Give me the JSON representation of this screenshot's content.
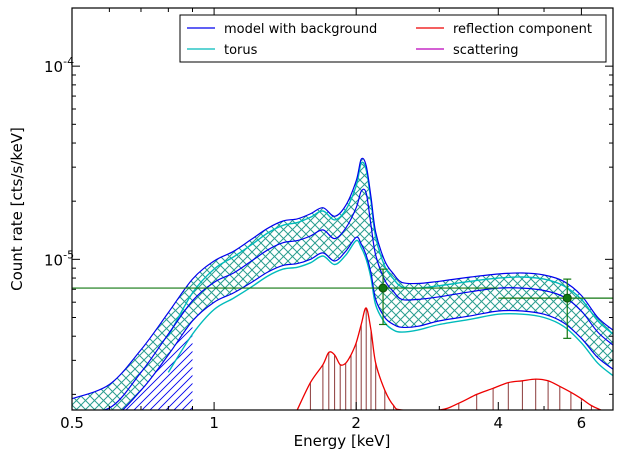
{
  "chart_data": {
    "type": "line",
    "title": "",
    "xlabel": "Energy [keV]",
    "ylabel": "Count rate [cts/s/keV]",
    "xscale": "log",
    "yscale": "log",
    "xlim": [
      0.5,
      7.0
    ],
    "ylim": [
      1.66e-06,
      0.0002
    ],
    "xticks": [
      {
        "value": 0.5,
        "label": "0.5"
      },
      {
        "value": 1,
        "label": "1"
      },
      {
        "value": 2,
        "label": "2"
      },
      {
        "value": 4,
        "label": "4"
      },
      {
        "value": 6,
        "label": "6"
      }
    ],
    "yticks": [
      {
        "value": 1e-05,
        "base": "10",
        "exp": "-5"
      },
      {
        "value": 0.0001,
        "base": "10",
        "exp": "-4"
      }
    ],
    "legend": {
      "placement": "top-right",
      "entries": [
        {
          "label": "model with background",
          "color": "#0000ee"
        },
        {
          "label": "reflection component",
          "color": "#ee0000"
        },
        {
          "label": "torus",
          "color": "#00bbbb"
        },
        {
          "label": "scattering",
          "color": "#bb00bb"
        }
      ]
    },
    "colors": {
      "model": "#0000ee",
      "torus": "#00bbbb",
      "reflection": "#ee0000",
      "reflection_hatch": "#8b3a3a",
      "band_hatch": "#2a9d8f",
      "data": "#117711"
    },
    "series": [
      {
        "key": "model_mid",
        "x": [
          0.5,
          0.6,
          0.7,
          0.8,
          0.9,
          1.0,
          1.1,
          1.2,
          1.3,
          1.4,
          1.5,
          1.6,
          1.7,
          1.8,
          1.9,
          2.0,
          2.05,
          2.1,
          2.15,
          2.2,
          2.3,
          2.4,
          2.5,
          2.7,
          3.0,
          3.5,
          4.0,
          4.5,
          5.0,
          5.5,
          6.0,
          6.5,
          7.0
        ],
        "y": [
          1.66e-06,
          1.7e-06,
          2.6e-06,
          4.1e-06,
          6.1e-06,
          7.6e-06,
          8.5e-06,
          9.8e-06,
          1.12e-05,
          1.22e-05,
          1.25e-05,
          1.32e-05,
          1.42e-05,
          1.28e-05,
          1.45e-05,
          1.85e-05,
          2.25e-05,
          2.2e-05,
          1.5e-05,
          1.05e-05,
          7.8e-06,
          6.8e-06,
          6.2e-06,
          6.2e-06,
          6.4e-06,
          6.8e-06,
          7.1e-06,
          7.1e-06,
          6.9e-06,
          6.4e-06,
          5.4e-06,
          4.2e-06,
          3.6e-06
        ]
      },
      {
        "key": "model_upper",
        "x": [
          0.5,
          0.6,
          0.7,
          0.8,
          0.9,
          1.0,
          1.1,
          1.2,
          1.3,
          1.4,
          1.5,
          1.6,
          1.7,
          1.8,
          1.9,
          2.0,
          2.05,
          2.1,
          2.15,
          2.2,
          2.3,
          2.4,
          2.5,
          2.7,
          3.0,
          3.5,
          4.0,
          4.5,
          5.0,
          5.5,
          6.0,
          6.5,
          7.0
        ],
        "y": [
          1.9e-06,
          2.25e-06,
          3.4e-06,
          5.3e-06,
          7.9e-06,
          9.8e-06,
          1.1e-05,
          1.27e-05,
          1.45e-05,
          1.58e-05,
          1.62e-05,
          1.72e-05,
          1.85e-05,
          1.67e-05,
          1.9e-05,
          2.55e-05,
          3.3e-05,
          3.05e-05,
          2.1e-05,
          1.38e-05,
          9.8e-06,
          8.4e-06,
          7.6e-06,
          7.5e-06,
          7.7e-06,
          8.1e-06,
          8.4e-06,
          8.5e-06,
          8.3e-06,
          7.7e-06,
          6.5e-06,
          5e-06,
          4.3e-06
        ]
      },
      {
        "key": "model_lower",
        "x": [
          0.5,
          0.6,
          0.7,
          0.8,
          0.9,
          1.0,
          1.1,
          1.2,
          1.3,
          1.4,
          1.5,
          1.6,
          1.7,
          1.8,
          1.9,
          2.0,
          2.05,
          2.1,
          2.15,
          2.2,
          2.3,
          2.4,
          2.5,
          2.7,
          3.0,
          3.5,
          4.0,
          4.5,
          5.0,
          5.5,
          6.0,
          6.5,
          7.0
        ],
        "y": [
          1.6e-06,
          1.5e-06,
          2.1e-06,
          3.2e-06,
          4.8e-06,
          6e-06,
          6.7e-06,
          7.6e-06,
          8.6e-06,
          9.3e-06,
          9.5e-06,
          1e-05,
          1.08e-05,
          9.8e-06,
          1.1e-05,
          1.3e-05,
          1.2e-05,
          1.05e-05,
          8.5e-06,
          6.2e-06,
          5e-06,
          4.6e-06,
          4.45e-06,
          4.5e-06,
          4.8e-06,
          5.1e-06,
          5.4e-06,
          5.4e-06,
          5.2e-06,
          4.7e-06,
          3.9e-06,
          3.1e-06,
          2.7e-06
        ]
      },
      {
        "key": "torus_upper",
        "x": [
          0.8,
          0.9,
          1.0,
          1.1,
          1.2,
          1.3,
          1.4,
          1.5,
          1.6,
          1.7,
          1.8,
          1.9,
          2.0,
          2.05,
          2.1,
          2.15,
          2.2,
          2.3,
          2.4,
          2.5,
          2.7,
          3.0,
          3.5,
          4.0,
          4.5,
          5.0,
          5.5,
          6.0,
          6.5,
          7.0
        ],
        "y": [
          4e-06,
          6.7e-06,
          8.9e-06,
          1.03e-05,
          1.19e-05,
          1.37e-05,
          1.5e-05,
          1.55e-05,
          1.65e-05,
          1.78e-05,
          1.6e-05,
          1.8e-05,
          2.4e-05,
          3.15e-05,
          2.9e-05,
          2e-05,
          1.3e-05,
          9.2e-06,
          7.9e-06,
          7.2e-06,
          7.1e-06,
          7.3e-06,
          7.7e-06,
          8e-06,
          8.1e-06,
          7.9e-06,
          7.3e-06,
          6.2e-06,
          4.8e-06,
          4.1e-06
        ]
      },
      {
        "key": "torus_lower",
        "x": [
          0.8,
          0.9,
          1.0,
          1.1,
          1.2,
          1.3,
          1.4,
          1.5,
          1.6,
          1.7,
          1.8,
          1.9,
          2.0,
          2.05,
          2.1,
          2.15,
          2.2,
          2.3,
          2.4,
          2.5,
          2.7,
          3.0,
          3.5,
          4.0,
          4.5,
          5.0,
          5.5,
          6.0,
          6.5,
          7.0
        ],
        "y": [
          2.6e-06,
          4.1e-06,
          5.5e-06,
          6.3e-06,
          7.2e-06,
          8.2e-06,
          8.9e-06,
          9.1e-06,
          9.6e-06,
          1.04e-05,
          9.4e-06,
          1.05e-05,
          1.25e-05,
          1.15e-05,
          1e-05,
          8e-06,
          5.8e-06,
          4.7e-06,
          4.3e-06,
          4.2e-06,
          4.3e-06,
          4.6e-06,
          4.9e-06,
          5.2e-06,
          5.2e-06,
          5e-06,
          4.5e-06,
          3.7e-06,
          2.9e-06,
          2.5e-06
        ]
      },
      {
        "key": "reflection",
        "x": [
          1.5,
          1.6,
          1.7,
          1.75,
          1.8,
          1.85,
          1.9,
          1.95,
          2.0,
          2.05,
          2.1,
          2.15,
          2.2,
          2.3,
          2.4,
          2.5,
          3.0,
          3.3,
          3.6,
          3.9,
          4.2,
          4.5,
          4.8,
          5.1,
          5.4,
          5.7,
          6.0,
          6.3,
          6.6
        ],
        "y": [
          1.66e-06,
          2.3e-06,
          2.85e-06,
          3.3e-06,
          3.2e-06,
          2.85e-06,
          2.9e-06,
          3.2e-06,
          3.7e-06,
          4.6e-06,
          5.6e-06,
          4.3e-06,
          2.9e-06,
          2.1e-06,
          1.75e-06,
          1.66e-06,
          1.66e-06,
          1.8e-06,
          2e-06,
          2.15e-06,
          2.3e-06,
          2.35e-06,
          2.4e-06,
          2.35e-06,
          2.2e-06,
          2.05e-06,
          1.9e-06,
          1.75e-06,
          1.66e-06
        ]
      }
    ],
    "data_points": [
      {
        "x": 2.28,
        "y": 7.1e-06,
        "xerr": [
          0.5,
          4.0
        ],
        "yerr": [
          4.6e-06,
          8.9e-06
        ]
      },
      {
        "x": 5.6,
        "y": 6.3e-06,
        "xerr": [
          4.0,
          7.0
        ],
        "yerr": [
          3.9e-06,
          7.9e-06
        ]
      }
    ]
  }
}
